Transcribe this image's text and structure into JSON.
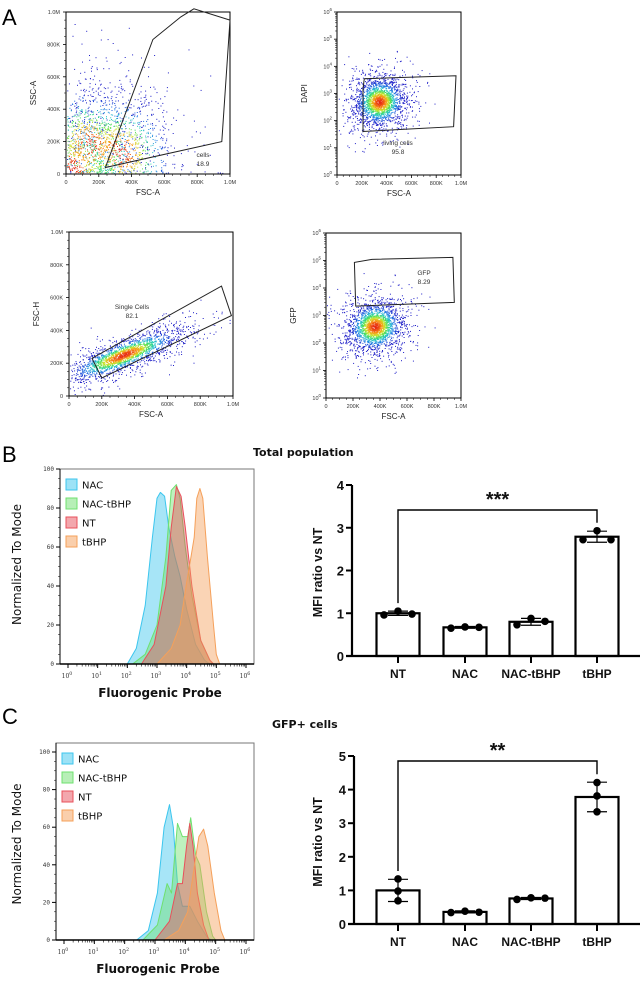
{
  "panels": {
    "A": {
      "letter": "A"
    },
    "B": {
      "letter": "B",
      "title": "Total population"
    },
    "C": {
      "letter": "C",
      "title": "GFP+ cells"
    }
  },
  "chart_data": [
    {
      "id": "flow-cells",
      "type": "scatter",
      "title": "",
      "xlabel": "FSC-A",
      "ylabel": "SSC-A",
      "xscale": "linear",
      "yscale": "linear",
      "xlim": [
        0,
        1000000
      ],
      "ylim": [
        0,
        1000000
      ],
      "xticks": [
        "0",
        "200K",
        "400K",
        "600K",
        "800K",
        "1.0M"
      ],
      "yticks": [
        "0",
        "200K",
        "400K",
        "600K",
        "800K",
        "1.0M"
      ],
      "gate": {
        "name": "cells",
        "percent": "18.9",
        "vertices": [
          [
            240000,
            40000
          ],
          [
            530000,
            830000
          ],
          [
            700000,
            970000
          ],
          [
            780000,
            1020000
          ],
          [
            1000000,
            950000
          ],
          [
            950000,
            200000
          ]
        ]
      },
      "density_centers": [
        [
          40000,
          40000
        ],
        [
          150000,
          180000
        ],
        [
          330000,
          140000
        ]
      ]
    },
    {
      "id": "flow-living",
      "type": "scatter",
      "xlabel": "FSC-A",
      "ylabel": "DAPI",
      "xscale": "linear",
      "yscale": "log",
      "xlim": [
        0,
        1000000
      ],
      "ylim": [
        1,
        1000000
      ],
      "xticks": [
        "0",
        "200K",
        "400K",
        "600K",
        "800K",
        "1.0M"
      ],
      "yticks": [
        "10^0",
        "10^1",
        "10^2",
        "10^3",
        "10^4",
        "10^5",
        "10^6"
      ],
      "gate": {
        "name": "living cells",
        "percent": "95.8",
        "vertices": [
          [
            220000,
            3500
          ],
          [
            210000,
            1500
          ],
          [
            210000,
            40
          ],
          [
            940000,
            60
          ],
          [
            960000,
            4500
          ]
        ]
      },
      "density_centers": [
        [
          340000,
          500
        ]
      ]
    },
    {
      "id": "flow-single",
      "type": "scatter",
      "xlabel": "FSC-A",
      "ylabel": "FSC-H",
      "xscale": "linear",
      "yscale": "linear",
      "xlim": [
        0,
        1000000
      ],
      "ylim": [
        0,
        1000000
      ],
      "xticks": [
        "0",
        "200K",
        "400K",
        "600K",
        "800K",
        "1.0M"
      ],
      "yticks": [
        "0",
        "200K",
        "400K",
        "600K",
        "800K",
        "1.0M"
      ],
      "gate": {
        "name": "Single Cells",
        "percent": "82.1",
        "vertices": [
          [
            140000,
            230000
          ],
          [
            200000,
            110000
          ],
          [
            990000,
            490000
          ],
          [
            930000,
            670000
          ]
        ]
      },
      "density_centers": [
        [
          330000,
          250000
        ]
      ]
    },
    {
      "id": "flow-gfp",
      "type": "scatter",
      "xlabel": "FSC-A",
      "ylabel": "GFP",
      "xscale": "linear",
      "yscale": "log",
      "xlim": [
        0,
        1000000
      ],
      "ylim": [
        1,
        1000000
      ],
      "xticks": [
        "0",
        "200K",
        "400K",
        "600K",
        "800K",
        "1.0M"
      ],
      "yticks": [
        "10^0",
        "10^1",
        "10^2",
        "10^3",
        "10^4",
        "10^5",
        "10^6"
      ],
      "gate": {
        "name": "GFP",
        "percent": "8.29",
        "vertices": [
          [
            220000,
            2200
          ],
          [
            210000,
            85000
          ],
          [
            340000,
            110000
          ],
          [
            940000,
            130000
          ],
          [
            950000,
            3000
          ]
        ]
      },
      "density_centers": [
        [
          360000,
          400
        ]
      ]
    },
    {
      "id": "hist-total",
      "type": "area",
      "title": "",
      "xlabel": "Fluorogenic Probe",
      "ylabel": "Normalized To Mode",
      "xscale": "log",
      "xlim": [
        0.5,
        1000000
      ],
      "ylim": [
        0,
        100
      ],
      "xticks": [
        "10^0",
        "10^1",
        "10^2",
        "10^3",
        "10^4",
        "10^5",
        "10^6"
      ],
      "yticks": [
        "0",
        "20",
        "40",
        "60",
        "80",
        "100"
      ],
      "legend_position": "top-left",
      "series": [
        {
          "name": "NAC",
          "color": "#3cc6ee",
          "peak_x": 1300,
          "peak_y": 88,
          "points": [
            [
              100,
              0
            ],
            [
              200,
              8
            ],
            [
              400,
              30
            ],
            [
              700,
              65
            ],
            [
              1000,
              85
            ],
            [
              1300,
              88
            ],
            [
              1800,
              86
            ],
            [
              2500,
              70
            ],
            [
              4000,
              55
            ],
            [
              6000,
              45
            ],
            [
              10000,
              28
            ],
            [
              20000,
              10
            ],
            [
              40000,
              2
            ],
            [
              60000,
              0
            ]
          ]
        },
        {
          "name": "NAC-tBHP",
          "color": "#6fe06f",
          "peak_x": 4500,
          "peak_y": 92,
          "points": [
            [
              150,
              0
            ],
            [
              400,
              5
            ],
            [
              1000,
              20
            ],
            [
              2000,
              55
            ],
            [
              3000,
              89
            ],
            [
              4500,
              92
            ],
            [
              6000,
              85
            ],
            [
              9000,
              60
            ],
            [
              15000,
              35
            ],
            [
              30000,
              12
            ],
            [
              60000,
              2
            ],
            [
              80000,
              0
            ]
          ]
        },
        {
          "name": "NT",
          "color": "#e8505b",
          "peak_x": 4500,
          "peak_y": 91,
          "points": [
            [
              300,
              0
            ],
            [
              800,
              10
            ],
            [
              2000,
              40
            ],
            [
              3000,
              70
            ],
            [
              4500,
              91
            ],
            [
              6500,
              86
            ],
            [
              9000,
              70
            ],
            [
              15000,
              40
            ],
            [
              30000,
              12
            ],
            [
              60000,
              2
            ],
            [
              80000,
              0
            ]
          ]
        },
        {
          "name": "tBHP",
          "color": "#f5a05a",
          "peak_x": 28000,
          "peak_y": 90,
          "points": [
            [
              1000,
              0
            ],
            [
              3000,
              8
            ],
            [
              6000,
              20
            ],
            [
              10000,
              42
            ],
            [
              14000,
              55
            ],
            [
              18000,
              65
            ],
            [
              22000,
              85
            ],
            [
              28000,
              90
            ],
            [
              35000,
              85
            ],
            [
              50000,
              55
            ],
            [
              80000,
              20
            ],
            [
              100000,
              5
            ],
            [
              130000,
              0
            ]
          ]
        }
      ]
    },
    {
      "id": "bar-total",
      "type": "bar",
      "title": "Total population",
      "xlabel": "",
      "ylabel": "MFI ratio vs NT",
      "ylim": [
        0,
        4
      ],
      "yticks": [
        "0",
        "1",
        "2",
        "3",
        "4"
      ],
      "categories": [
        "NT",
        "NAC",
        "NAC-tBHP",
        "tBHP"
      ],
      "values": [
        1.0,
        0.67,
        0.8,
        2.79
      ],
      "errors": [
        0.05,
        0.02,
        0.08,
        0.13
      ],
      "points": [
        [
          0.96,
          1.05,
          0.98
        ],
        [
          0.65,
          0.68,
          0.67
        ],
        [
          0.73,
          0.88,
          0.81
        ],
        [
          2.72,
          2.93,
          2.72
        ]
      ],
      "significance": {
        "from": "NT",
        "to": "tBHP",
        "label": "***"
      }
    },
    {
      "id": "hist-gfp",
      "type": "area",
      "xlabel": "Fluorogenic Probe",
      "ylabel": "Normalized To Mode",
      "xscale": "log",
      "xlim": [
        0.5,
        1000000
      ],
      "ylim": [
        0,
        100
      ],
      "xticks": [
        "10^0",
        "10^1",
        "10^2",
        "10^3",
        "10^4",
        "10^5",
        "10^6"
      ],
      "yticks": [
        "0",
        "20",
        "40",
        "60",
        "80",
        "100"
      ],
      "legend_position": "top-left",
      "series": [
        {
          "name": "NAC",
          "color": "#3cc6ee",
          "peak_x": 3000,
          "peak_y": 72,
          "points": [
            [
              250,
              0
            ],
            [
              600,
              5
            ],
            [
              1200,
              25
            ],
            [
              2000,
              60
            ],
            [
              3000,
              72
            ],
            [
              4000,
              60
            ],
            [
              5500,
              30
            ],
            [
              8000,
              18
            ],
            [
              14000,
              18
            ],
            [
              25000,
              10
            ],
            [
              50000,
              2
            ],
            [
              70000,
              0
            ]
          ]
        },
        {
          "name": "NAC-tBHP",
          "color": "#6fe06f",
          "peak_x": 15000,
          "peak_y": 65,
          "points": [
            [
              400,
              0
            ],
            [
              1200,
              8
            ],
            [
              2500,
              30
            ],
            [
              3500,
              25
            ],
            [
              5500,
              62
            ],
            [
              8000,
              55
            ],
            [
              12000,
              55
            ],
            [
              15000,
              65
            ],
            [
              22000,
              45
            ],
            [
              30000,
              40
            ],
            [
              50000,
              15
            ],
            [
              80000,
              2
            ],
            [
              100000,
              0
            ]
          ]
        },
        {
          "name": "NT",
          "color": "#e8505b",
          "peak_x": 14000,
          "peak_y": 62,
          "points": [
            [
              1000,
              0
            ],
            [
              3000,
              10
            ],
            [
              5500,
              30
            ],
            [
              8000,
              30
            ],
            [
              11000,
              50
            ],
            [
              14000,
              62
            ],
            [
              18000,
              50
            ],
            [
              25000,
              25
            ],
            [
              40000,
              8
            ],
            [
              60000,
              0
            ]
          ]
        },
        {
          "name": "tBHP",
          "color": "#f5a05a",
          "peak_x": 40000,
          "peak_y": 59,
          "points": [
            [
              2000,
              0
            ],
            [
              6000,
              5
            ],
            [
              12000,
              15
            ],
            [
              20000,
              40
            ],
            [
              28000,
              55
            ],
            [
              40000,
              59
            ],
            [
              55000,
              50
            ],
            [
              90000,
              25
            ],
            [
              150000,
              5
            ],
            [
              200000,
              0
            ]
          ]
        }
      ]
    },
    {
      "id": "bar-gfp",
      "type": "bar",
      "title": "GFP+ cells",
      "xlabel": "",
      "ylabel": "MFI ratio vs NT",
      "ylim": [
        0,
        5
      ],
      "yticks": [
        "0",
        "1",
        "2",
        "3",
        "4",
        "5"
      ],
      "categories": [
        "NT",
        "NAC",
        "NAC-tBHP",
        "tBHP"
      ],
      "values": [
        1.0,
        0.36,
        0.76,
        3.78
      ],
      "errors": [
        0.33,
        0.03,
        0.03,
        0.44
      ],
      "points": [
        [
          1.34,
          0.98,
          0.69
        ],
        [
          0.34,
          0.38,
          0.35
        ],
        [
          0.73,
          0.78,
          0.77
        ],
        [
          4.21,
          3.81,
          3.34
        ]
      ],
      "significance": {
        "from": "NT",
        "to": "tBHP",
        "label": "**"
      }
    }
  ]
}
